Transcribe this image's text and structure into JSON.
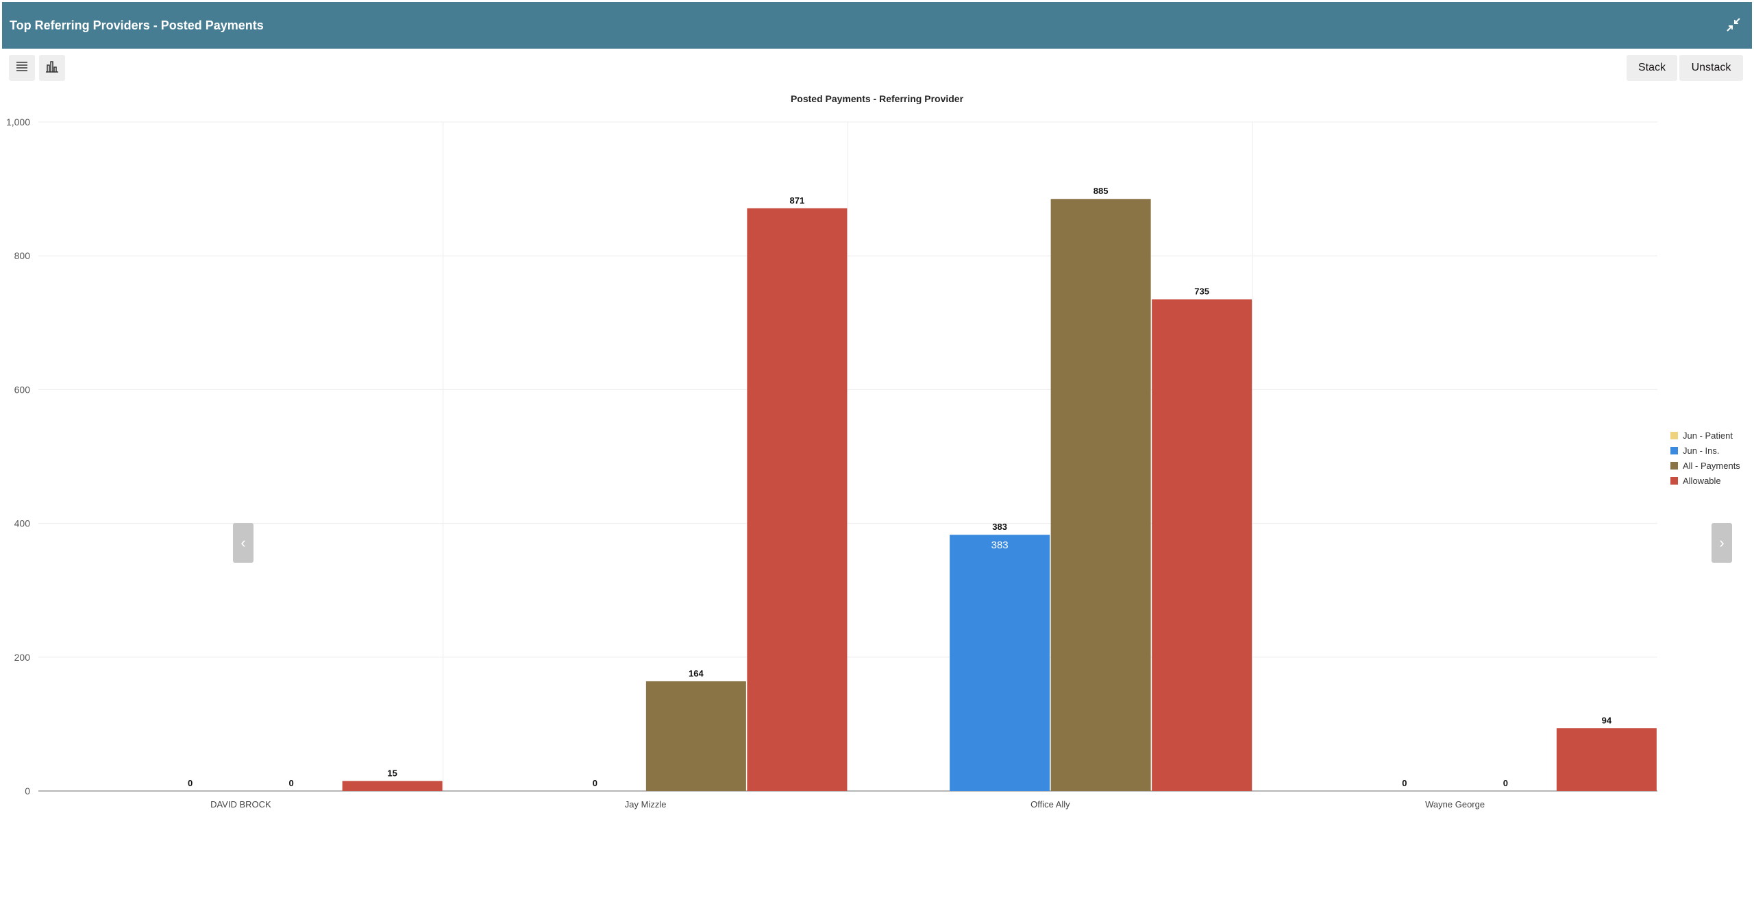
{
  "window": {
    "title": "Top Referring Providers - Posted Payments",
    "collapse_icon": "collapse-arrows-icon"
  },
  "toolbar": {
    "list_icon": "list-icon",
    "chart_icon": "bar-chart-icon",
    "stack_label": "Stack",
    "unstack_label": "Unstack"
  },
  "navigation": {
    "prev_icon": "chevron-left-icon",
    "next_icon": "chevron-right-icon",
    "prev_glyph": "‹",
    "next_glyph": "›"
  },
  "colors": {
    "header": "#477d92",
    "jun_patient": "#efd27e",
    "jun_ins": "#3a8ae0",
    "all_payments": "#8a7345",
    "allowable": "#c94e42"
  },
  "chart_data": {
    "type": "bar",
    "title": "Posted Payments - Referring Provider",
    "categories": [
      "DAVID BROCK",
      "Jay Mizzle",
      "Office Ally",
      "Wayne George"
    ],
    "series": [
      {
        "name": "Jun - Patient",
        "color": "#efd27e",
        "values": [
          null,
          null,
          null,
          null
        ]
      },
      {
        "name": "Jun - Ins.",
        "color": "#3a8ae0",
        "values": [
          0,
          0,
          383,
          0
        ]
      },
      {
        "name": "All - Payments",
        "color": "#8a7345",
        "values": [
          0,
          164,
          885,
          0
        ]
      },
      {
        "name": "Allowable",
        "color": "#c94e42",
        "values": [
          15,
          871,
          735,
          94
        ]
      }
    ],
    "ylim": [
      0,
      1000
    ],
    "yticks": [
      0,
      200,
      400,
      600,
      800,
      1000
    ],
    "ytick_labels": [
      "0",
      "200",
      "400",
      "600",
      "800",
      "1,000"
    ],
    "inbar_label": {
      "category": "Office Ally",
      "series": "Jun - Ins.",
      "text": "383"
    },
    "grid": true,
    "legend_position": "right"
  }
}
